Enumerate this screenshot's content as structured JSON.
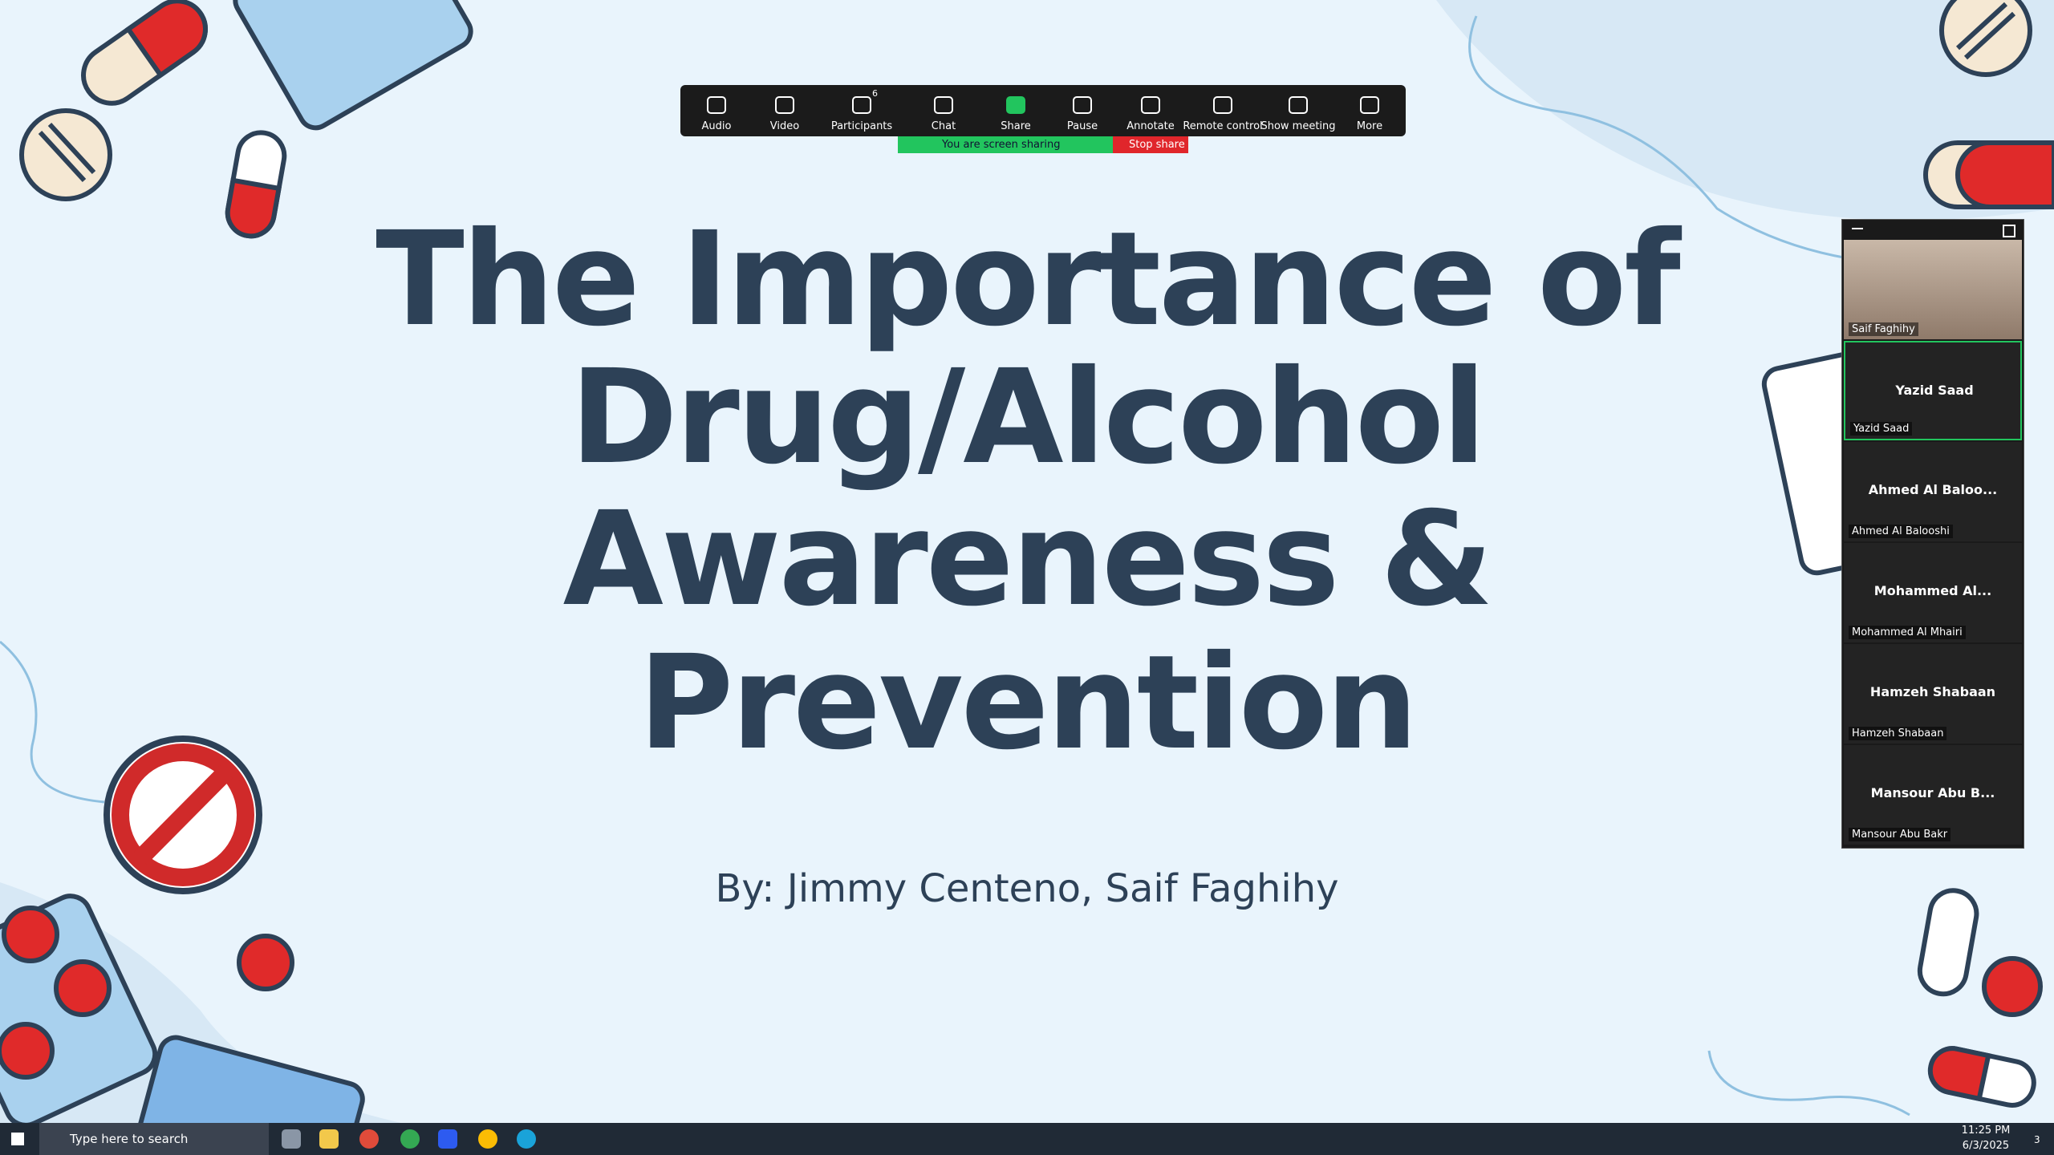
{
  "toolbar": {
    "participants_count": "6",
    "buttons": [
      "Audio",
      "Video",
      "Participants",
      "Chat",
      "Share",
      "Pause",
      "Annotate",
      "Remote control",
      "Show meeting",
      "More"
    ]
  },
  "sharing_banner": {
    "status": "You are screen sharing",
    "stop": "Stop share"
  },
  "slide": {
    "title_lines": [
      "The Importance of",
      "Drug/Alcohol",
      "Awareness &",
      "Prevention"
    ],
    "subtitle": "By: Jimmy Centeno, Saif Faghihy"
  },
  "participants": [
    {
      "label": "Saif Faghihy"
    },
    {
      "display": "Yazid Saad",
      "label": "Yazid Saad"
    },
    {
      "display": "Ahmed Al Baloo...",
      "label": "Ahmed Al Balooshi"
    },
    {
      "display": "Mohammed Al...",
      "label": "Mohammed Al Mhairi"
    },
    {
      "display": "Hamzeh Shabaan",
      "label": "Hamzeh Shabaan"
    },
    {
      "display": "Mansour Abu B...",
      "label": "Mansour Abu Bakr"
    }
  ],
  "taskbar": {
    "search": "Type here to search",
    "time": "11:25 PM",
    "date": "6/3/2025",
    "notifications": "3"
  }
}
